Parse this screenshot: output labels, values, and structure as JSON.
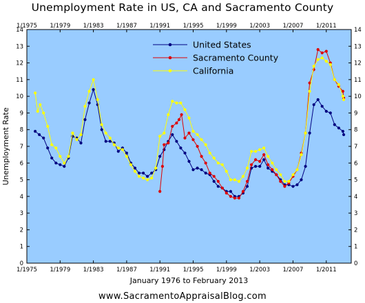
{
  "chart_data": {
    "type": "line",
    "title": "Unemployment Rate in US, CA and Sacramento County",
    "xlabel": "January 1976 to February 2013",
    "ylabel": "Unemployment Rate",
    "footer": "www.SacramentoAppraisalBlog.com",
    "xlim": [
      1975,
      2014
    ],
    "ylim": [
      0,
      14
    ],
    "x_ticks": [
      1975,
      1979,
      1983,
      1987,
      1991,
      1995,
      1999,
      2003,
      2007,
      2011
    ],
    "x_tick_labels": [
      "1/1975",
      "1/1979",
      "1/1983",
      "1/1987",
      "1/1991",
      "1/1995",
      "1/1999",
      "1/2003",
      "1/2007",
      "1/2011"
    ],
    "y_ticks": [
      0,
      1,
      2,
      3,
      4,
      5,
      6,
      7,
      8,
      9,
      10,
      11,
      12,
      13,
      14
    ],
    "plot_background": "#99ccff",
    "grid": false,
    "legend_position": "top-center",
    "series": [
      {
        "name": "United States",
        "color": "#000080",
        "points": [
          [
            1976.0,
            7.9
          ],
          [
            1976.5,
            7.7
          ],
          [
            1977.0,
            7.5
          ],
          [
            1977.5,
            6.9
          ],
          [
            1978.0,
            6.3
          ],
          [
            1978.5,
            6.0
          ],
          [
            1979.0,
            5.9
          ],
          [
            1979.5,
            5.8
          ],
          [
            1980.0,
            6.3
          ],
          [
            1980.5,
            7.6
          ],
          [
            1981.0,
            7.5
          ],
          [
            1981.5,
            7.2
          ],
          [
            1982.0,
            8.6
          ],
          [
            1982.5,
            9.6
          ],
          [
            1983.0,
            10.4
          ],
          [
            1983.5,
            9.5
          ],
          [
            1984.0,
            8.0
          ],
          [
            1984.5,
            7.3
          ],
          [
            1985.0,
            7.3
          ],
          [
            1985.5,
            7.2
          ],
          [
            1986.0,
            6.7
          ],
          [
            1986.5,
            6.9
          ],
          [
            1987.0,
            6.6
          ],
          [
            1987.5,
            6.0
          ],
          [
            1988.0,
            5.7
          ],
          [
            1988.5,
            5.4
          ],
          [
            1989.0,
            5.4
          ],
          [
            1989.5,
            5.2
          ],
          [
            1990.0,
            5.4
          ],
          [
            1990.5,
            5.6
          ],
          [
            1991.0,
            6.4
          ],
          [
            1991.5,
            6.8
          ],
          [
            1992.0,
            7.3
          ],
          [
            1992.5,
            7.7
          ],
          [
            1993.0,
            7.3
          ],
          [
            1993.5,
            6.9
          ],
          [
            1994.0,
            6.6
          ],
          [
            1994.5,
            6.1
          ],
          [
            1995.0,
            5.6
          ],
          [
            1995.5,
            5.7
          ],
          [
            1996.0,
            5.6
          ],
          [
            1996.5,
            5.4
          ],
          [
            1997.0,
            5.3
          ],
          [
            1997.5,
            4.9
          ],
          [
            1998.0,
            4.6
          ],
          [
            1998.5,
            4.5
          ],
          [
            1999.0,
            4.3
          ],
          [
            1999.5,
            4.3
          ],
          [
            2000.0,
            4.0
          ],
          [
            2000.5,
            4.0
          ],
          [
            2001.0,
            4.2
          ],
          [
            2001.5,
            4.6
          ],
          [
            2002.0,
            5.7
          ],
          [
            2002.5,
            5.8
          ],
          [
            2003.0,
            5.8
          ],
          [
            2003.5,
            6.2
          ],
          [
            2004.0,
            5.7
          ],
          [
            2004.5,
            5.5
          ],
          [
            2005.0,
            5.3
          ],
          [
            2005.5,
            5.0
          ],
          [
            2006.0,
            4.7
          ],
          [
            2006.5,
            4.7
          ],
          [
            2007.0,
            4.6
          ],
          [
            2007.5,
            4.7
          ],
          [
            2008.0,
            5.0
          ],
          [
            2008.5,
            5.8
          ],
          [
            2009.0,
            7.8
          ],
          [
            2009.5,
            9.5
          ],
          [
            2010.0,
            9.8
          ],
          [
            2010.5,
            9.4
          ],
          [
            2011.0,
            9.1
          ],
          [
            2011.5,
            9.0
          ],
          [
            2012.0,
            8.3
          ],
          [
            2012.5,
            8.1
          ],
          [
            2013.0,
            7.9
          ],
          [
            2013.1,
            7.7
          ]
        ]
      },
      {
        "name": "Sacramento County",
        "color": "#dd0000",
        "points": [
          [
            1991.0,
            4.3
          ],
          [
            1991.3,
            5.8
          ],
          [
            1991.5,
            7.1
          ],
          [
            1992.0,
            7.2
          ],
          [
            1992.5,
            8.2
          ],
          [
            1993.0,
            8.4
          ],
          [
            1993.3,
            8.6
          ],
          [
            1993.6,
            8.9
          ],
          [
            1994.0,
            7.5
          ],
          [
            1994.5,
            7.8
          ],
          [
            1995.0,
            7.4
          ],
          [
            1995.5,
            7.0
          ],
          [
            1996.0,
            6.4
          ],
          [
            1996.5,
            6.0
          ],
          [
            1997.0,
            5.4
          ],
          [
            1997.5,
            5.2
          ],
          [
            1998.0,
            4.9
          ],
          [
            1998.5,
            4.5
          ],
          [
            1999.0,
            4.2
          ],
          [
            1999.5,
            4.0
          ],
          [
            2000.0,
            3.9
          ],
          [
            2000.5,
            3.9
          ],
          [
            2001.0,
            4.3
          ],
          [
            2001.5,
            4.9
          ],
          [
            2002.0,
            5.9
          ],
          [
            2002.5,
            6.2
          ],
          [
            2003.0,
            6.1
          ],
          [
            2003.5,
            6.5
          ],
          [
            2004.0,
            5.9
          ],
          [
            2004.5,
            5.6
          ],
          [
            2005.0,
            5.3
          ],
          [
            2005.5,
            4.9
          ],
          [
            2006.0,
            4.6
          ],
          [
            2006.5,
            4.8
          ],
          [
            2007.0,
            5.2
          ],
          [
            2007.5,
            5.6
          ],
          [
            2008.0,
            6.6
          ],
          [
            2008.5,
            7.8
          ],
          [
            2009.0,
            10.8
          ],
          [
            2009.5,
            11.6
          ],
          [
            2010.0,
            12.8
          ],
          [
            2010.5,
            12.6
          ],
          [
            2011.0,
            12.7
          ],
          [
            2011.5,
            12.0
          ],
          [
            2012.0,
            11.0
          ],
          [
            2012.5,
            10.6
          ],
          [
            2013.0,
            10.3
          ],
          [
            2013.1,
            9.9
          ]
        ]
      },
      {
        "name": "California",
        "color": "#ffff00",
        "points": [
          [
            1976.0,
            10.2
          ],
          [
            1976.3,
            9.1
          ],
          [
            1976.6,
            9.5
          ],
          [
            1977.0,
            9.0
          ],
          [
            1977.5,
            8.2
          ],
          [
            1978.0,
            7.1
          ],
          [
            1978.5,
            6.9
          ],
          [
            1979.0,
            6.4
          ],
          [
            1979.5,
            6.0
          ],
          [
            1980.0,
            6.4
          ],
          [
            1980.5,
            7.8
          ],
          [
            1981.0,
            7.4
          ],
          [
            1981.5,
            7.7
          ],
          [
            1982.0,
            9.4
          ],
          [
            1982.5,
            10.3
          ],
          [
            1983.0,
            11.0
          ],
          [
            1983.5,
            9.8
          ],
          [
            1984.0,
            8.3
          ],
          [
            1984.5,
            7.8
          ],
          [
            1985.0,
            7.5
          ],
          [
            1985.5,
            7.1
          ],
          [
            1986.0,
            6.9
          ],
          [
            1986.5,
            6.8
          ],
          [
            1987.0,
            6.4
          ],
          [
            1987.5,
            5.9
          ],
          [
            1988.0,
            5.5
          ],
          [
            1988.5,
            5.2
          ],
          [
            1989.0,
            5.1
          ],
          [
            1989.5,
            5.0
          ],
          [
            1990.0,
            5.1
          ],
          [
            1990.5,
            5.7
          ],
          [
            1991.0,
            7.6
          ],
          [
            1991.5,
            7.8
          ],
          [
            1992.0,
            8.9
          ],
          [
            1992.5,
            9.7
          ],
          [
            1993.0,
            9.6
          ],
          [
            1993.5,
            9.6
          ],
          [
            1994.0,
            9.2
          ],
          [
            1994.5,
            8.7
          ],
          [
            1995.0,
            7.9
          ],
          [
            1995.5,
            7.7
          ],
          [
            1996.0,
            7.4
          ],
          [
            1996.5,
            7.1
          ],
          [
            1997.0,
            6.6
          ],
          [
            1997.5,
            6.3
          ],
          [
            1998.0,
            6.0
          ],
          [
            1998.5,
            5.9
          ],
          [
            1999.0,
            5.5
          ],
          [
            1999.5,
            5.0
          ],
          [
            2000.0,
            5.0
          ],
          [
            2000.5,
            4.9
          ],
          [
            2001.0,
            5.2
          ],
          [
            2001.5,
            5.7
          ],
          [
            2002.0,
            6.7
          ],
          [
            2002.5,
            6.7
          ],
          [
            2003.0,
            6.8
          ],
          [
            2003.5,
            6.9
          ],
          [
            2004.0,
            6.4
          ],
          [
            2004.5,
            6.0
          ],
          [
            2005.0,
            5.6
          ],
          [
            2005.5,
            5.3
          ],
          [
            2006.0,
            4.9
          ],
          [
            2006.5,
            4.9
          ],
          [
            2007.0,
            5.3
          ],
          [
            2007.5,
            5.6
          ],
          [
            2008.0,
            6.5
          ],
          [
            2008.5,
            7.8
          ],
          [
            2009.0,
            10.3
          ],
          [
            2009.5,
            11.8
          ],
          [
            2010.0,
            12.2
          ],
          [
            2010.5,
            12.3
          ],
          [
            2011.0,
            12.1
          ],
          [
            2011.5,
            11.9
          ],
          [
            2012.0,
            11.0
          ],
          [
            2012.5,
            10.7
          ],
          [
            2013.0,
            10.0
          ],
          [
            2013.1,
            9.8
          ]
        ]
      }
    ]
  }
}
